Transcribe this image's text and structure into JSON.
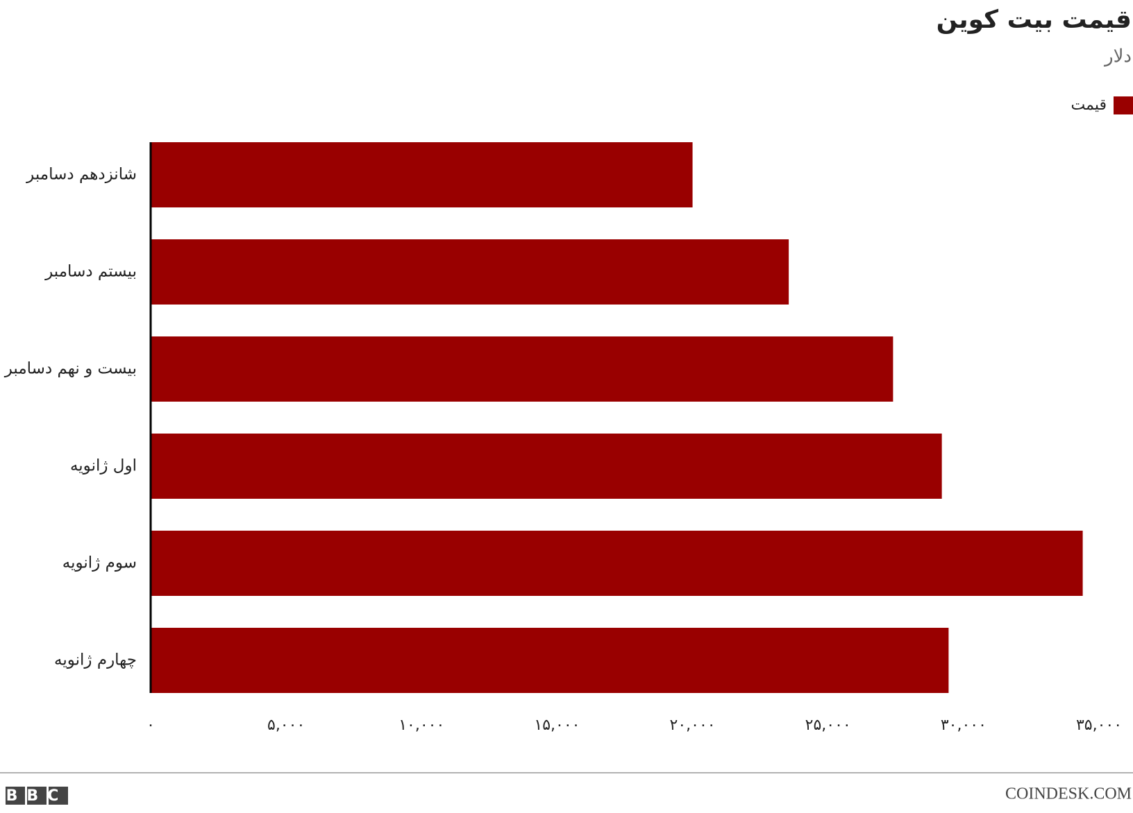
{
  "chart_data": {
    "type": "bar",
    "orientation": "horizontal",
    "title": "قیمت بیت کوین",
    "subtitle": "دلار",
    "legend": "top-right",
    "categories": [
      "شانزدهم دسامبر",
      "بیستم دسامبر",
      "بیست و نهم دسامبر",
      "اول ژانویه",
      "سوم ژانویه",
      "چهارم ژانویه"
    ],
    "series": [
      {
        "name": "قیمت",
        "color": "#990000",
        "values": [
          20000,
          23550,
          27400,
          29200,
          34400,
          29450
        ]
      }
    ],
    "xlim": [
      0,
      35000
    ],
    "xticks": [
      {
        "value": 0,
        "label": "۰"
      },
      {
        "value": 5000,
        "label": "۵,۰۰۰"
      },
      {
        "value": 10000,
        "label": "۱۰,۰۰۰"
      },
      {
        "value": 15000,
        "label": "۱۵,۰۰۰"
      },
      {
        "value": 20000,
        "label": "۲۰,۰۰۰"
      },
      {
        "value": 25000,
        "label": "۲۵,۰۰۰"
      },
      {
        "value": 30000,
        "label": "۳۰,۰۰۰"
      },
      {
        "value": 35000,
        "label": "۳۵,۰۰۰"
      }
    ],
    "grid": false,
    "logo": "BBC",
    "source": "COINDESK.COM"
  }
}
